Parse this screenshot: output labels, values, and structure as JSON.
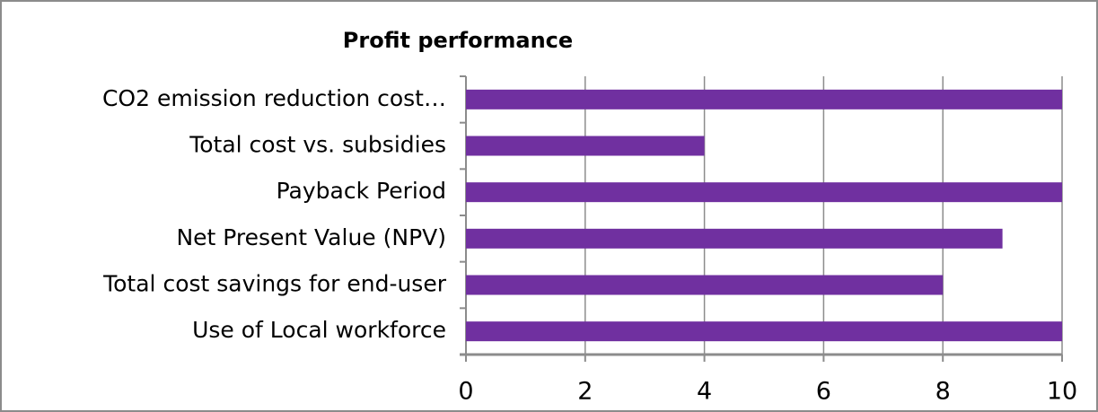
{
  "chart_data": {
    "type": "bar",
    "orientation": "horizontal",
    "title": "Profit performance",
    "categories": [
      "CO2 emission reduction cost…",
      "Total cost vs. subsidies",
      "Payback Period",
      "Net Present Value (NPV)",
      "Total cost savings for end-user",
      "Use of Local workforce"
    ],
    "values": [
      10,
      4,
      10,
      9,
      8,
      10
    ],
    "color": "#7030a0",
    "xlim": [
      0,
      10
    ],
    "xticks": [
      0,
      2,
      4,
      6,
      8,
      10
    ],
    "grid": true
  }
}
